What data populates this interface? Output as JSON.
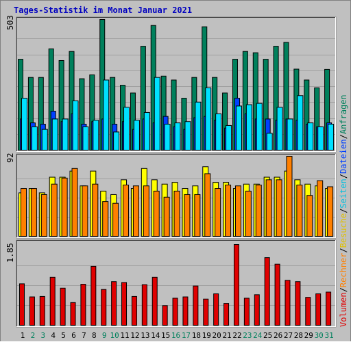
{
  "title": "Tages-Statistik im Monat Januar 2021",
  "colors": {
    "background": "#c0c0c0",
    "title": "#0000c0",
    "anfragen": "#00805c",
    "dateien": "#0040ff",
    "seiten": "#00e0ff",
    "besuche": "#ffff00",
    "rechner": "#ff8000",
    "volumen": "#e00000",
    "weekend": "#00805c"
  },
  "right_legend": {
    "anfragen": "Anfragen",
    "sep1": "/",
    "dateien": "Dateien",
    "sep2": "/",
    "seiten": "Seiten",
    "sep3": "/",
    "besuche": "Besuche",
    "sep4": "/",
    "rechner": "Rechner",
    "sep5": "/",
    "volumen": "Volumen"
  },
  "chart_data": [
    {
      "type": "bar",
      "panel": "top",
      "y_max_label": "503",
      "ylim": [
        0,
        503
      ],
      "categories": [
        "1",
        "2",
        "3",
        "4",
        "5",
        "6",
        "7",
        "8",
        "9",
        "10",
        "11",
        "12",
        "13",
        "14",
        "15",
        "16",
        "17",
        "18",
        "19",
        "20",
        "21",
        "22",
        "23",
        "24",
        "25",
        "26",
        "27",
        "28",
        "29",
        "30",
        "31"
      ],
      "series": [
        {
          "name": "Anfragen",
          "values": [
            350,
            280,
            280,
            390,
            345,
            380,
            275,
            290,
            503,
            280,
            250,
            220,
            400,
            480,
            285,
            270,
            200,
            280,
            475,
            280,
            220,
            350,
            380,
            375,
            350,
            400,
            415,
            312,
            270,
            240,
            311
          ]
        },
        {
          "name": "Dateien",
          "values": [
            120,
            105,
            100,
            150,
            110,
            140,
            100,
            110,
            120,
            100,
            110,
            80,
            120,
            105,
            130,
            90,
            80,
            125,
            130,
            115,
            85,
            200,
            140,
            120,
            120,
            115,
            120,
            115,
            100,
            90,
            105
          ]
        },
        {
          "name": "Seiten",
          "values": [
            200,
            90,
            80,
            120,
            120,
            190,
            90,
            115,
            270,
            70,
            165,
            115,
            145,
            280,
            100,
            105,
            110,
            185,
            240,
            140,
            95,
            170,
            175,
            180,
            65,
            165,
            120,
            210,
            105,
            90,
            100
          ]
        }
      ]
    },
    {
      "type": "bar",
      "panel": "middle",
      "y_max_label": "92",
      "ylim": [
        0,
        92
      ],
      "categories": [
        "1",
        "2",
        "3",
        "4",
        "5",
        "6",
        "7",
        "8",
        "9",
        "10",
        "11",
        "12",
        "13",
        "14",
        "15",
        "16",
        "17",
        "18",
        "19",
        "20",
        "21",
        "22",
        "23",
        "24",
        "25",
        "26",
        "27",
        "28",
        "29",
        "30",
        "31"
      ],
      "series": [
        {
          "name": "Besuche",
          "values": [
            50,
            55,
            50,
            68,
            68,
            75,
            58,
            75,
            52,
            48,
            65,
            55,
            78,
            65,
            60,
            62,
            55,
            58,
            80,
            62,
            62,
            55,
            60,
            60,
            68,
            68,
            75,
            65,
            60,
            58,
            55
          ]
        },
        {
          "name": "Rechner",
          "values": [
            55,
            55,
            48,
            60,
            67,
            78,
            58,
            60,
            40,
            38,
            59,
            58,
            58,
            52,
            45,
            52,
            48,
            48,
            72,
            55,
            59,
            58,
            52,
            59,
            65,
            65,
            92,
            59,
            47,
            64,
            57
          ]
        }
      ]
    },
    {
      "type": "bar",
      "panel": "bottom",
      "y_max_label": "1.85",
      "ylim": [
        0,
        1.85
      ],
      "categories": [
        "1",
        "2",
        "3",
        "4",
        "5",
        "6",
        "7",
        "8",
        "9",
        "10",
        "11",
        "12",
        "13",
        "14",
        "15",
        "16",
        "17",
        "18",
        "19",
        "20",
        "21",
        "22",
        "23",
        "24",
        "25",
        "26",
        "27",
        "28",
        "29",
        "30",
        "31"
      ],
      "series": [
        {
          "name": "Volumen",
          "values": [
            0.95,
            0.65,
            0.66,
            1.1,
            0.85,
            0.52,
            0.94,
            1.35,
            0.82,
            1.0,
            0.98,
            0.66,
            0.93,
            1.1,
            0.45,
            0.62,
            0.65,
            0.9,
            0.6,
            0.72,
            0.5,
            1.85,
            0.62,
            0.7,
            1.55,
            1.4,
            1.03,
            1.0,
            0.64,
            0.72,
            0.76
          ]
        }
      ]
    }
  ],
  "weekend_days": [
    "2",
    "3",
    "9",
    "10",
    "16",
    "17",
    "23",
    "24",
    "30",
    "31"
  ]
}
